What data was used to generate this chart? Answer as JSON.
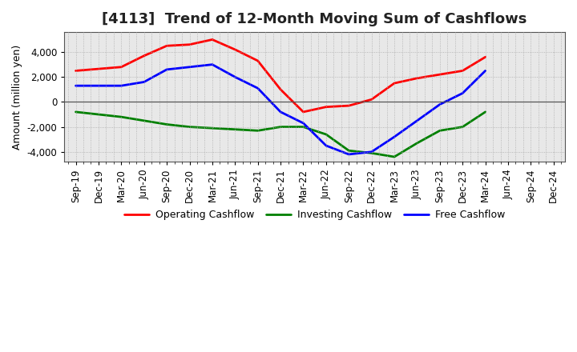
{
  "title": "[4113]  Trend of 12-Month Moving Sum of Cashflows",
  "ylabel": "Amount (million yen)",
  "plot_bg_color": "#e8e8e8",
  "fig_bg_color": "#ffffff",
  "grid_color": "#aaaaaa",
  "zero_line_color": "#555555",
  "x_labels": [
    "Sep-19",
    "Dec-19",
    "Mar-20",
    "Jun-20",
    "Sep-20",
    "Dec-20",
    "Mar-21",
    "Jun-21",
    "Sep-21",
    "Dec-21",
    "Mar-22",
    "Jun-22",
    "Sep-22",
    "Dec-22",
    "Mar-23",
    "Jun-23",
    "Sep-23",
    "Dec-23",
    "Mar-24",
    "Jun-24",
    "Sep-24",
    "Dec-24"
  ],
  "operating": [
    2500,
    2650,
    2800,
    3700,
    4500,
    4600,
    5000,
    4200,
    3300,
    1000,
    -800,
    -400,
    -300,
    200,
    1500,
    1900,
    2200,
    2500,
    3600,
    null,
    null,
    null
  ],
  "investing": [
    -800,
    -1000,
    -1200,
    -1500,
    -1800,
    -2000,
    -2100,
    -2200,
    -2300,
    -2000,
    -2000,
    -2600,
    -3900,
    -4100,
    -4400,
    -3300,
    -2300,
    -2000,
    -800,
    null,
    null,
    null
  ],
  "free": [
    1300,
    1300,
    1300,
    1600,
    2600,
    2800,
    3000,
    2000,
    1100,
    -800,
    -1700,
    -3500,
    -4200,
    -4000,
    -2800,
    -1500,
    -200,
    700,
    2500,
    null,
    null,
    null
  ],
  "ylim": [
    -4800,
    5600
  ],
  "yticks": [
    -4000,
    -2000,
    0,
    2000,
    4000
  ],
  "line_colors": {
    "operating": "#ff0000",
    "investing": "#008000",
    "free": "#0000ff"
  },
  "line_width": 2.0,
  "legend_labels": {
    "operating": "Operating Cashflow",
    "investing": "Investing Cashflow",
    "free": "Free Cashflow"
  },
  "title_fontsize": 13,
  "axis_fontsize": 9,
  "tick_fontsize": 8.5,
  "legend_fontsize": 9
}
